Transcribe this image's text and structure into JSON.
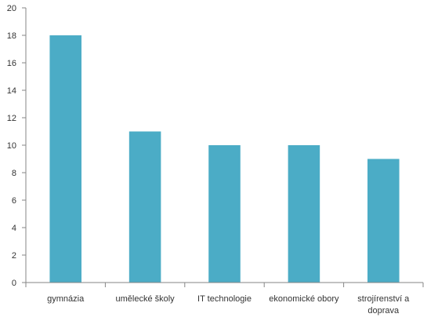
{
  "chart_data": {
    "type": "bar",
    "categories": [
      [
        "gymnázia"
      ],
      [
        "umělecké školy"
      ],
      [
        "IT technologie"
      ],
      [
        "ekonomické obory"
      ],
      [
        "strojírenství a",
        "doprava"
      ]
    ],
    "values": [
      18,
      11,
      10,
      10,
      9
    ],
    "ylim": [
      0,
      20
    ],
    "yticks": [
      "0",
      "2",
      "4",
      "6",
      "8",
      "10",
      "12",
      "14",
      "16",
      "18",
      "20"
    ],
    "grid": false,
    "legend": "none",
    "title": "",
    "xlabel": "",
    "ylabel": "",
    "bar_color": "#4BACC6",
    "axis_color": "#868686"
  }
}
